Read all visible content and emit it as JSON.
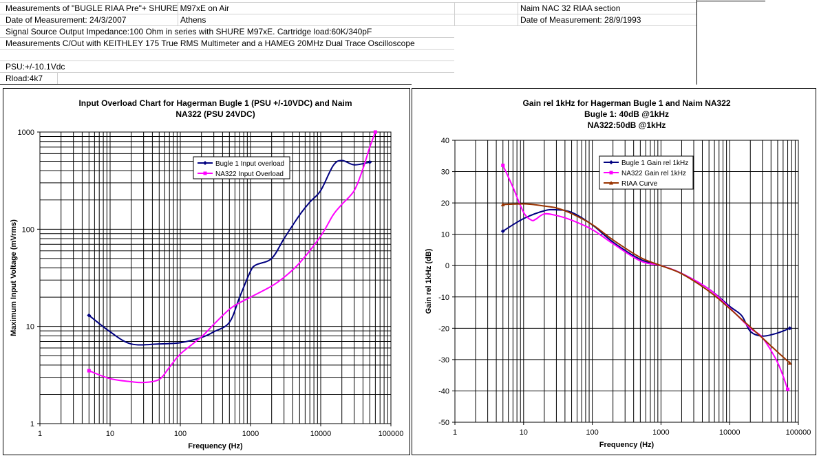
{
  "sheet": {
    "left_lines": [
      "Measurements of \"BUGLE RIAA Pre\"+ SHURE M97xE on Air",
      "Date of Measurement: 24/3/2007",
      "Signal Source Output Impedance:100 Ohm in series with SHURE M97xE. Cartridge load:60K/340pF",
      "Measurements C/Out with KEITHLEY 175 True RMS Multimeter and a HAMEG 20MHz Dual Trace Oscilloscope",
      "",
      "PSU:+/-10.1Vdc",
      "Rload:4k7"
    ],
    "location": "Athens",
    "right_lines": [
      "Naim NAC 32 RIAA section",
      "Date of Measurement: 28/9/1993"
    ]
  },
  "chart_data": [
    {
      "type": "line",
      "title_lines": [
        "Input Overload Chart for Hagerman Bugle 1 (PSU +/-10VDC) and Naim",
        "NA322 (PSU 24VDC)"
      ],
      "xlabel": "Frequency (Hz)",
      "ylabel": "Maximum Input Voltage (mVrms)",
      "xscale": "log",
      "yscale": "log",
      "xlim": [
        1,
        100000
      ],
      "ylim": [
        1,
        1000
      ],
      "x_ticks": [
        "1",
        "10",
        "100",
        "1000",
        "10000",
        "100000"
      ],
      "y_ticks": [
        "1",
        "10",
        "100",
        "1000"
      ],
      "grid": true,
      "legend_position": "top-center",
      "series": [
        {
          "name": "Bugle 1 Input overload",
          "color": "#000080",
          "marker": "diamond",
          "x": [
            5,
            10,
            20,
            50,
            100,
            200,
            300,
            500,
            700,
            1000,
            1200,
            2000,
            3000,
            5000,
            7000,
            10000,
            15000,
            20000,
            30000,
            50000
          ],
          "y": [
            13,
            8.8,
            6.6,
            6.6,
            6.8,
            7.7,
            8.8,
            11,
            20,
            37,
            43,
            50,
            80,
            140,
            190,
            250,
            450,
            510,
            460,
            490
          ]
        },
        {
          "name": "NA322 Input Overload",
          "color": "#FF00FF",
          "marker": "square",
          "x": [
            5,
            10,
            20,
            30,
            50,
            70,
            100,
            200,
            300,
            500,
            700,
            1000,
            2000,
            3000,
            5000,
            10000,
            15000,
            20000,
            30000,
            40000,
            50000,
            60000
          ],
          "y": [
            3.5,
            2.9,
            2.7,
            2.65,
            2.85,
            3.8,
            5.2,
            7.8,
            10.5,
            15,
            17.5,
            20,
            26,
            32,
            45,
            85,
            140,
            180,
            250,
            420,
            700,
            1000
          ]
        }
      ]
    },
    {
      "type": "line",
      "title_lines": [
        "Gain rel 1kHz for Hagerman Bugle 1 and Naim NA322",
        "Bugle 1: 40dB @1kHz",
        "NA322:50dB @1kHz"
      ],
      "xlabel": "Frequency (Hz)",
      "ylabel": "Gain rel 1kHz (dB)",
      "xscale": "log",
      "yscale": "linear",
      "xlim": [
        1,
        100000
      ],
      "ylim": [
        -50,
        40
      ],
      "x_ticks": [
        "1",
        "10",
        "100",
        "1000",
        "10000",
        "100000"
      ],
      "y_ticks": [
        "40",
        "30",
        "20",
        "10",
        "0",
        "-10",
        "-20",
        "-30",
        "-40",
        "-50"
      ],
      "grid": true,
      "legend_position": "top-left",
      "series": [
        {
          "name": "Bugle 1 Gain rel 1kHz",
          "color": "#000080",
          "marker": "diamond",
          "x": [
            5,
            10,
            20,
            30,
            50,
            100,
            200,
            500,
            1000,
            2000,
            5000,
            10000,
            15000,
            20000,
            30000,
            50000,
            75000
          ],
          "y": [
            11,
            15,
            17.5,
            17.8,
            17,
            13,
            7.5,
            2,
            0,
            -2.5,
            -7.5,
            -13,
            -16,
            -21,
            -22.5,
            -21.5,
            -20
          ]
        },
        {
          "name": "NA322 Gain rel 1kHz",
          "color": "#FF00FF",
          "marker": "square",
          "x": [
            5,
            7,
            10,
            13,
            15,
            20,
            30,
            50,
            100,
            200,
            500,
            1000,
            2000,
            5000,
            10000,
            20000,
            30000,
            50000,
            70000
          ],
          "y": [
            32,
            25,
            17,
            14.5,
            14.8,
            16.5,
            16,
            14.5,
            11.5,
            7,
            1.5,
            0,
            -2.5,
            -7.5,
            -13.5,
            -20,
            -23,
            -31,
            -39.5
          ]
        },
        {
          "name": "RIAA Curve",
          "color": "#993300",
          "marker": "triangle",
          "x": [
            5,
            10,
            15,
            20,
            30,
            50,
            100,
            200,
            500,
            1000,
            2000,
            5000,
            10000,
            15000,
            20000,
            30000,
            50000,
            75000
          ],
          "y": [
            19.5,
            19.7,
            19.4,
            19.0,
            18.4,
            16.6,
            13.1,
            8.2,
            2.6,
            0,
            -2.6,
            -8.2,
            -13.7,
            -17.2,
            -19.6,
            -23.1,
            -27.6,
            -31.1
          ]
        }
      ]
    }
  ]
}
